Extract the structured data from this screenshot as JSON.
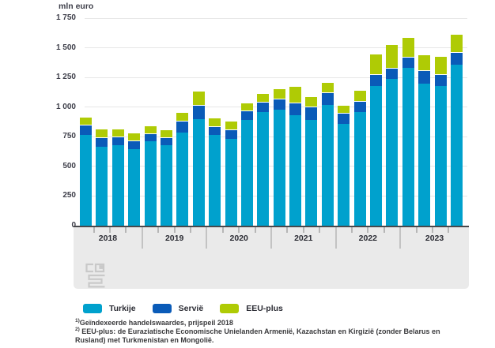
{
  "chart": {
    "unit": "mln euro"
  },
  "chart_data": {
    "type": "bar",
    "stacked": true,
    "title": "",
    "unit": "mln euro",
    "categories": [
      "2018 Q1",
      "2018 Q2",
      "2018 Q3",
      "2018 Q4",
      "2019 Q1",
      "2019 Q2",
      "2019 Q3",
      "2019 Q4",
      "2020 Q1",
      "2020 Q2",
      "2020 Q3",
      "2020 Q4",
      "2021 Q1",
      "2021 Q2",
      "2021 Q3",
      "2021 Q4",
      "2022 Q1",
      "2022 Q2",
      "2022 Q3",
      "2022 Q4",
      "2023 Q1",
      "2023 Q2",
      "2023 Q3",
      "2023 Q4"
    ],
    "year_labels": [
      "2018",
      "2019",
      "2020",
      "2021",
      "2022",
      "2023"
    ],
    "quarters_per_year": 4,
    "series": [
      {
        "name": "Turkije",
        "color": "#00a1cd",
        "values": [
          765,
          665,
          680,
          645,
          715,
          680,
          785,
          895,
          765,
          730,
          890,
          955,
          980,
          930,
          890,
          1015,
          860,
          955,
          1175,
          1240,
          1330,
          1195,
          1180,
          1355
        ]
      },
      {
        "name": "Servië",
        "color": "#0a5bb8",
        "values": [
          85,
          78,
          70,
          70,
          65,
          67,
          100,
          120,
          73,
          83,
          83,
          85,
          90,
          105,
          115,
          105,
          90,
          90,
          100,
          95,
          95,
          110,
          100,
          105
        ]
      },
      {
        "name": "EEU-plus",
        "color": "#afcb05",
        "values": [
          67,
          71,
          67,
          68,
          68,
          67,
          70,
          120,
          70,
          72,
          67,
          70,
          85,
          140,
          85,
          85,
          67,
          90,
          175,
          200,
          165,
          135,
          150,
          155
        ]
      }
    ],
    "ylim": [
      0,
      1750
    ],
    "yticks": [
      0,
      250,
      500,
      750,
      1000,
      1250,
      1500,
      1750
    ],
    "ytick_labels": [
      "0",
      "250",
      "500",
      "750",
      "1 000",
      "1 250",
      "1 500",
      "1 750"
    ],
    "grid": true,
    "legend_position": "bottom"
  },
  "icons": {
    "logo": "cbs-logo"
  },
  "footnotes": [
    {
      "marker": "1)",
      "text": "Geïndexeerde handelswaardes, prijspeil 2018"
    },
    {
      "marker": "2)",
      "text": " EEU-plus: de Euraziatische Economische Unielanden Armenië, Kazachstan en Kirgizië (zonder Belarus en Rusland) met Turkmenistan en Mongolië."
    }
  ]
}
